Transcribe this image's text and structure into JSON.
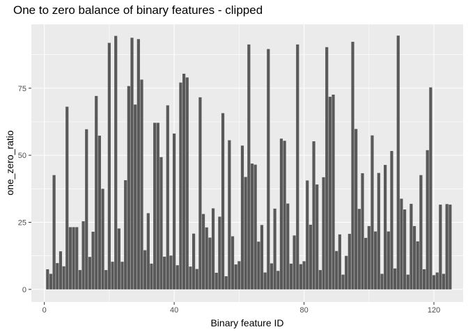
{
  "chart_data": {
    "type": "bar",
    "title": "One to zero balance of binary features - clipped",
    "xlabel": "Binary feature ID",
    "ylabel": "one_zero_ratio",
    "xlim": [
      -4,
      129
    ],
    "ylim": [
      -4.7,
      98.8
    ],
    "x_ticks": [
      0,
      40,
      80,
      120
    ],
    "y_ticks": [
      0,
      25,
      50,
      75
    ],
    "grid": true,
    "colors": {
      "panel": "#ebebeb",
      "grid_major": "#ffffff",
      "bar": "#595959"
    },
    "x": [
      1,
      2,
      3,
      4,
      5,
      6,
      7,
      8,
      9,
      10,
      11,
      12,
      13,
      14,
      15,
      16,
      17,
      18,
      19,
      20,
      21,
      22,
      23,
      24,
      25,
      26,
      27,
      28,
      29,
      30,
      31,
      32,
      33,
      34,
      35,
      36,
      37,
      38,
      39,
      40,
      41,
      42,
      43,
      44,
      45,
      46,
      47,
      48,
      49,
      50,
      51,
      52,
      53,
      54,
      55,
      56,
      57,
      58,
      59,
      60,
      61,
      62,
      63,
      64,
      65,
      66,
      67,
      68,
      69,
      70,
      71,
      72,
      73,
      74,
      75,
      76,
      77,
      78,
      79,
      80,
      81,
      82,
      83,
      84,
      85,
      86,
      87,
      88,
      89,
      90,
      91,
      92,
      93,
      94,
      95,
      96,
      97,
      98,
      99,
      100,
      101,
      102,
      103,
      104,
      105,
      106,
      107,
      108,
      109,
      110,
      111,
      112,
      113,
      114,
      115,
      116,
      117,
      118,
      119,
      120,
      121,
      122,
      123,
      124,
      125
    ],
    "values": [
      7.5,
      5.8,
      42.6,
      9.8,
      14.2,
      8.6,
      68.1,
      23.2,
      23.2,
      23.2,
      7.2,
      25.4,
      59.7,
      12.1,
      21.5,
      72.1,
      57.3,
      37.5,
      7.2,
      91.9,
      10.3,
      94.5,
      22.7,
      10.3,
      40.7,
      75.8,
      93.8,
      68.9,
      93.3,
      78.2,
      14.6,
      28.4,
      9.6,
      62.1,
      62.1,
      49.3,
      12.2,
      68.6,
      12.6,
      58.1,
      9.0,
      77.1,
      80.4,
      79.0,
      8.5,
      20.8,
      7.6,
      71.6,
      28.1,
      23.1,
      19.3,
      30.2,
      6.2,
      27.1,
      65.7,
      4.9,
      55.6,
      19.8,
      9.3,
      10.5,
      53.6,
      41.9,
      91.3,
      46.9,
      46.5,
      17.8,
      24.0,
      6.3,
      89.6,
      9.7,
      30.1,
      6.9,
      56.2,
      55.4,
      32.0,
      9.6,
      20.1,
      91.3,
      9.4,
      10.5,
      40.6,
      24.1,
      55.2,
      39.1,
      7.2,
      41.8,
      90.3,
      71.8,
      72.6,
      14.3,
      20.5,
      5.5,
      12.5,
      20.7,
      92.3,
      59.8,
      30.0,
      43.3,
      19.2,
      23.6,
      57.4,
      21.6,
      43.4,
      5.8,
      46.4,
      21.6,
      51.6,
      7.8,
      94.6,
      33.8,
      29.8,
      5.5,
      31.9,
      23.6,
      17.9,
      42.6,
      7.5,
      51.9,
      75.3,
      5.3,
      6.3,
      31.6,
      5.8,
      31.8,
      31.6
    ]
  }
}
